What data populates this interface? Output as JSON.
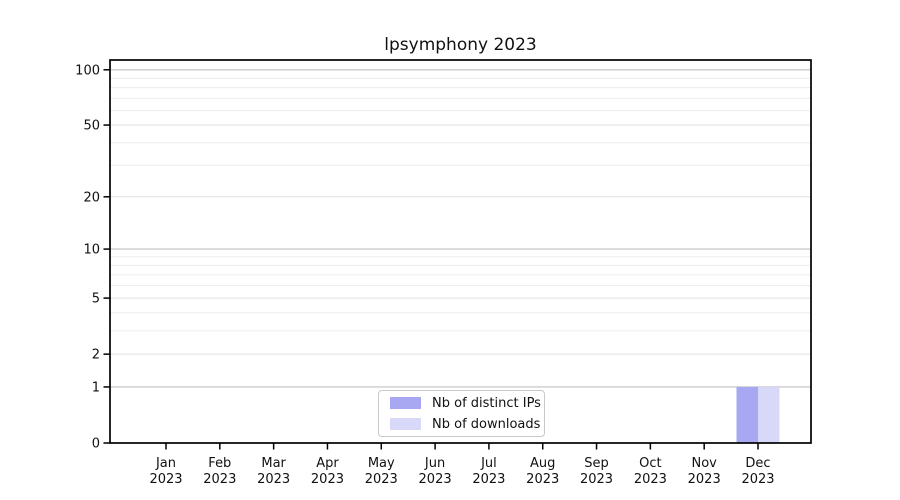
{
  "title": "lpsymphony 2023",
  "chart_data": {
    "type": "bar",
    "title": "lpsymphony 2023",
    "categories": [
      {
        "month": "Jan",
        "year": "2023"
      },
      {
        "month": "Feb",
        "year": "2023"
      },
      {
        "month": "Mar",
        "year": "2023"
      },
      {
        "month": "Apr",
        "year": "2023"
      },
      {
        "month": "May",
        "year": "2023"
      },
      {
        "month": "Jun",
        "year": "2023"
      },
      {
        "month": "Jul",
        "year": "2023"
      },
      {
        "month": "Aug",
        "year": "2023"
      },
      {
        "month": "Sep",
        "year": "2023"
      },
      {
        "month": "Oct",
        "year": "2023"
      },
      {
        "month": "Nov",
        "year": "2023"
      },
      {
        "month": "Dec",
        "year": "2023"
      }
    ],
    "series": [
      {
        "name": "Nb of distinct IPs",
        "color": "#a8a8f2",
        "values": [
          0,
          0,
          0,
          0,
          0,
          0,
          0,
          0,
          0,
          0,
          0,
          1
        ]
      },
      {
        "name": "Nb of downloads",
        "color": "#d8d8f8",
        "values": [
          0,
          0,
          0,
          0,
          0,
          0,
          0,
          0,
          0,
          0,
          0,
          1
        ]
      }
    ],
    "xlabel": "",
    "ylabel": "",
    "yscale": "log1p",
    "ylim": [
      0,
      113
    ],
    "yticks": [
      0,
      1,
      2,
      5,
      10,
      20,
      50,
      100
    ],
    "grid": {
      "decade_lines": [
        1,
        10,
        100
      ],
      "labeled_lines": [
        2,
        5,
        20,
        50
      ],
      "minor_lines": [
        3,
        4,
        6,
        7,
        8,
        9,
        30,
        40,
        60,
        70,
        80,
        90
      ]
    },
    "legend_position": "lower center"
  }
}
